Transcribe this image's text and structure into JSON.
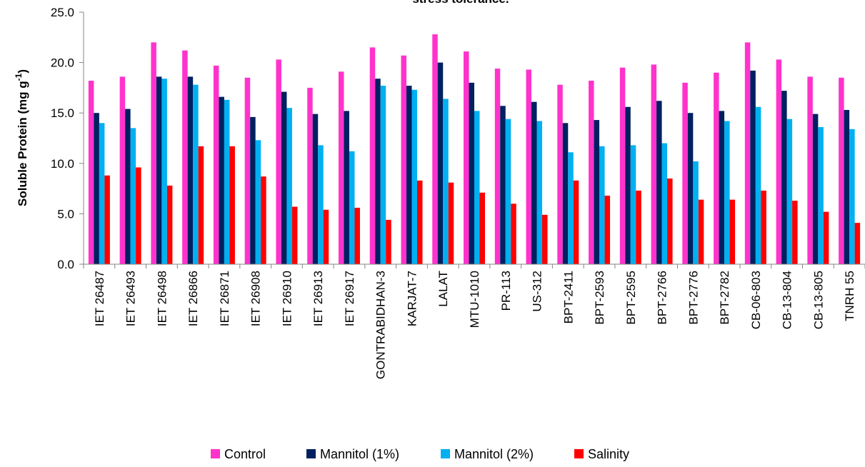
{
  "chart_data": {
    "type": "bar",
    "title": "stress tolerance.",
    "ylabel_main": "Soluble Protein (mg g",
    "ylabel_sup": "-1",
    "ylabel_end": ")",
    "ylim": [
      0,
      25
    ],
    "yticks": [
      "0.0",
      "5.0",
      "10.0",
      "15.0",
      "20.0",
      "25.0"
    ],
    "ytick_values": [
      0,
      5,
      10,
      15,
      20,
      25
    ],
    "grid": false,
    "legend_position": "bottom",
    "categories": [
      "IET 26487",
      "IET 26493",
      "IET 26498",
      "IET 26866",
      "IET 26871",
      "IET 26908",
      "IET 26910",
      "IET 26913",
      "IET 26917",
      "GONTRABIDHAN-3",
      "KARJAT-7",
      "LALAT",
      "MTU-1010",
      "PR-113",
      "US-312",
      "BPT-2411",
      "BPT-2593",
      "BPT-2595",
      "BPT-2766",
      "BPT-2776",
      "BPT-2782",
      "CB-06-803",
      "CB-13-804",
      "CB-13-805",
      "TNRH 55"
    ],
    "series": [
      {
        "name": "Control",
        "color": "#ff33cc",
        "values": [
          18.2,
          18.6,
          22.0,
          21.2,
          19.7,
          18.5,
          20.3,
          17.5,
          19.1,
          21.5,
          20.7,
          22.8,
          21.1,
          19.4,
          19.3,
          17.8,
          18.2,
          19.5,
          19.8,
          18.0,
          19.0,
          22.0,
          20.3,
          18.6,
          18.5
        ]
      },
      {
        "name": "Mannitol (1%)",
        "color": "#002060",
        "values": [
          15.0,
          15.4,
          18.6,
          18.6,
          16.6,
          14.6,
          17.1,
          14.9,
          15.2,
          18.4,
          17.7,
          20.0,
          18.0,
          15.7,
          16.1,
          14.0,
          14.3,
          15.6,
          16.2,
          15.0,
          15.2,
          19.2,
          17.2,
          14.9,
          15.3
        ]
      },
      {
        "name": "Mannitol (2%)",
        "color": "#00b0f0",
        "values": [
          14.0,
          13.5,
          18.4,
          17.8,
          16.3,
          12.3,
          15.5,
          11.8,
          11.2,
          17.7,
          17.3,
          16.4,
          15.2,
          14.4,
          14.2,
          11.1,
          11.7,
          11.8,
          12.0,
          10.2,
          14.2,
          15.6,
          14.4,
          13.6,
          13.4
        ]
      },
      {
        "name": "Salinity",
        "color": "#ff0000",
        "values": [
          8.8,
          9.6,
          7.8,
          11.7,
          11.7,
          8.7,
          5.7,
          5.4,
          5.6,
          4.4,
          8.3,
          8.1,
          7.1,
          6.0,
          4.9,
          8.3,
          6.8,
          7.3,
          8.5,
          6.4,
          6.4,
          7.3,
          6.3,
          5.2,
          4.1
        ]
      }
    ]
  }
}
